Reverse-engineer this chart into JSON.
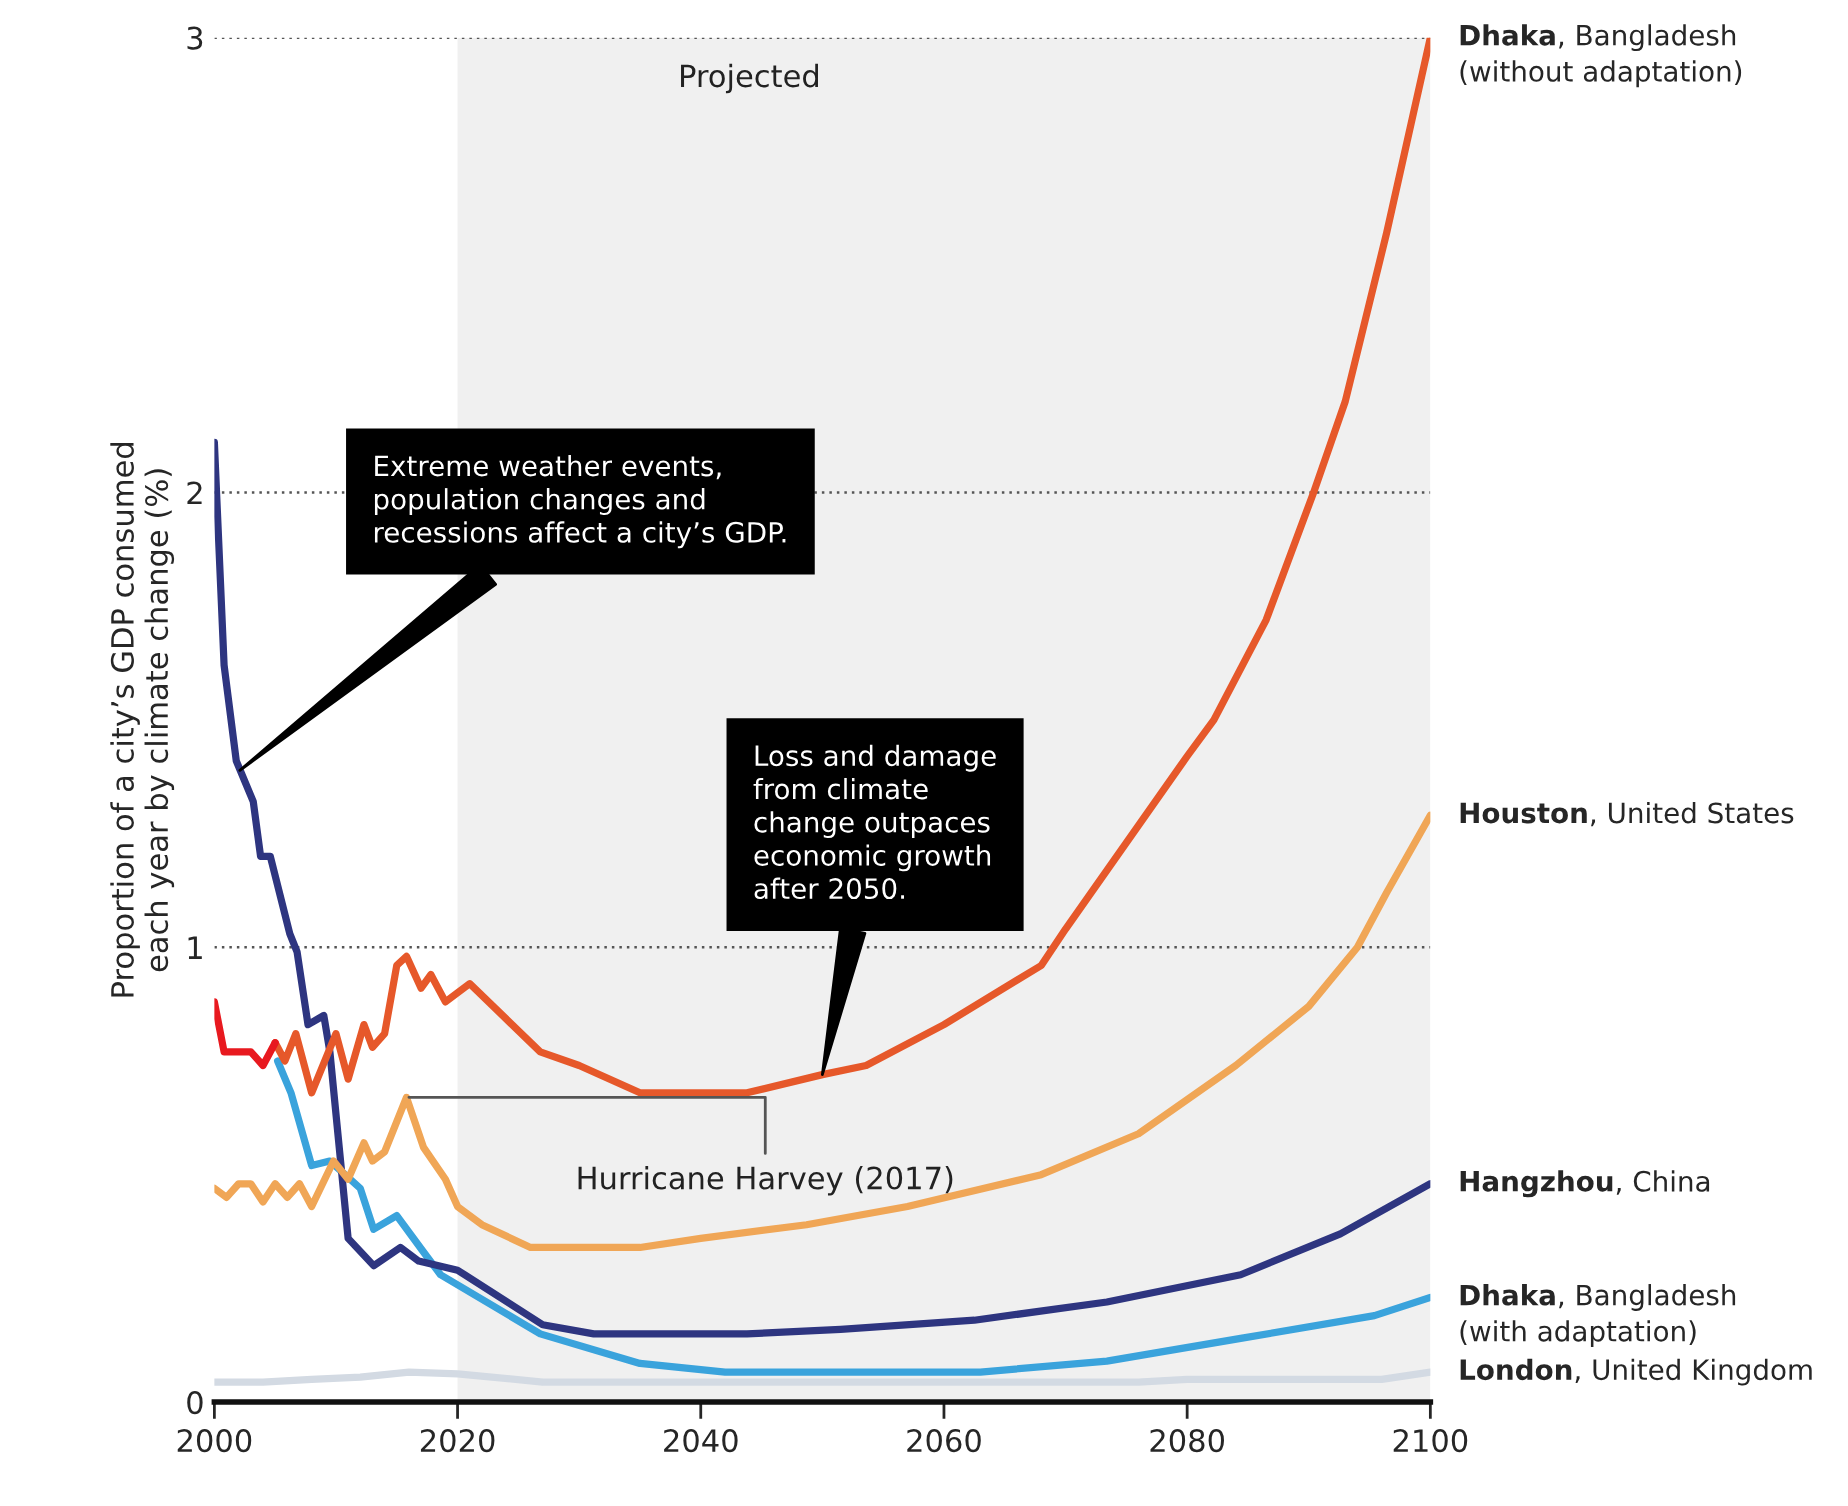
{
  "chart_data": {
    "type": "line",
    "ylabel": "Proportion of a city’s GDP consumed\neach year by climate change (%)",
    "xlim": [
      2000,
      2100
    ],
    "xticks": [
      2000,
      2020,
      2040,
      2060,
      2080,
      2100
    ],
    "ylim": [
      0,
      3
    ],
    "yticks": [
      0,
      1,
      2,
      3
    ],
    "grid": "y",
    "legend": false,
    "line_style": "solid",
    "marker": "none",
    "bands": [
      {
        "axis": "x",
        "from": 2020,
        "to": 2100,
        "label": "Projected",
        "color": "#f0f0f0"
      }
    ],
    "series": [
      {
        "color": "#e8191f",
        "x": [
          2000,
          2000.8,
          2003,
          2004,
          2005
        ],
        "values": [
          0.88,
          0.77,
          0.77,
          0.74,
          0.79
        ]
      },
      {
        "name": "Dhaka, Bangladesh\n(without adaptation)",
        "color": "#e6582a",
        "x": [
          2005,
          2005.8,
          2006.7,
          2008,
          2010,
          2011,
          2012.3,
          2013,
          2014,
          2015,
          2015.8,
          2017,
          2017.8,
          2019,
          2021,
          2026.8,
          2030,
          2035,
          2043.8,
          2050,
          2053.6,
          2060,
          2068,
          2070,
          2080,
          2082.2,
          2086.5,
          2090.4,
          2093,
          2096.4,
          2100
        ],
        "values": [
          0.79,
          0.75,
          0.81,
          0.68,
          0.81,
          0.71,
          0.83,
          0.78,
          0.81,
          0.96,
          0.98,
          0.91,
          0.94,
          0.88,
          0.92,
          0.77,
          0.74,
          0.68,
          0.68,
          0.72,
          0.74,
          0.83,
          0.96,
          1.04,
          1.42,
          1.5,
          1.72,
          2.0,
          2.2,
          2.57,
          3.0
        ]
      },
      {
        "name": "Houston, United States",
        "color": "#f0a656",
        "x": [
          2000,
          2001,
          2002,
          2003,
          2004,
          2005,
          2006,
          2007,
          2008,
          2009.8,
          2011,
          2012.3,
          2013,
          2014,
          2015.8,
          2017.2,
          2019,
          2020,
          2022,
          2026,
          2035,
          2040,
          2048.7,
          2057,
          2068,
          2076,
          2084,
          2090,
          2094,
          2096.4,
          2100
        ],
        "values": [
          0.47,
          0.45,
          0.48,
          0.48,
          0.44,
          0.48,
          0.45,
          0.48,
          0.43,
          0.53,
          0.49,
          0.57,
          0.53,
          0.55,
          0.67,
          0.56,
          0.49,
          0.43,
          0.39,
          0.34,
          0.34,
          0.36,
          0.39,
          0.43,
          0.5,
          0.59,
          0.74,
          0.87,
          1.0,
          1.12,
          1.29
        ]
      },
      {
        "name": "Hangzhou, China",
        "color": "#2e3580",
        "x": [
          2000,
          2000.8,
          2001.8,
          2003.2,
          2003.8,
          2004.6,
          2006.2,
          2006.8,
          2007.7,
          2009,
          2009.5,
          2011,
          2013.1,
          2015.3,
          2016.8,
          2020,
          2027,
          2031.2,
          2043.8,
          2051.5,
          2062.5,
          2073.4,
          2084.4,
          2092.6,
          2100
        ],
        "values": [
          2.11,
          1.62,
          1.41,
          1.32,
          1.2,
          1.2,
          1.03,
          0.99,
          0.83,
          0.85,
          0.77,
          0.36,
          0.3,
          0.34,
          0.31,
          0.29,
          0.17,
          0.15,
          0.15,
          0.16,
          0.18,
          0.22,
          0.28,
          0.37,
          0.48
        ]
      },
      {
        "name": "Dhaka, Bangladesh\n(with adaptation)",
        "color": "#3aa3dc",
        "x": [
          2005.2,
          2006.3,
          2008,
          2009.5,
          2010.5,
          2012,
          2013.1,
          2015,
          2017.2,
          2018.6,
          2026.8,
          2035,
          2042,
          2063,
          2073.4,
          2084.4,
          2095.4,
          2100
        ],
        "values": [
          0.75,
          0.68,
          0.52,
          0.53,
          null,
          0.47,
          0.38,
          0.41,
          0.33,
          0.28,
          0.15,
          0.085,
          0.066,
          0.066,
          0.09,
          0.14,
          0.19,
          0.23
        ]
      },
      {
        "name": "London, United Kingdom",
        "color": "#d3dae3",
        "x": [
          2000,
          2004,
          2008,
          2012,
          2016,
          2020,
          2027,
          2040,
          2060,
          2076,
          2080,
          2096,
          2100
        ],
        "values": [
          0.044,
          0.044,
          0.05,
          0.055,
          0.066,
          0.062,
          0.044,
          0.044,
          0.044,
          0.044,
          0.05,
          0.05,
          0.066
        ]
      }
    ],
    "annotations": [
      "Extreme weather events,\npopulation changes and\nrecessions affect a city’s GDP.",
      {
        "text": "Loss and damage\nfrom climate\nchange outpaces\neconomic growth\nafter 2050.",
        "x": 2050,
        "y": 0.72
      },
      {
        "text": "Hurricane Harvey (2017)",
        "x": 2016,
        "y": 0.67
      }
    ]
  }
}
